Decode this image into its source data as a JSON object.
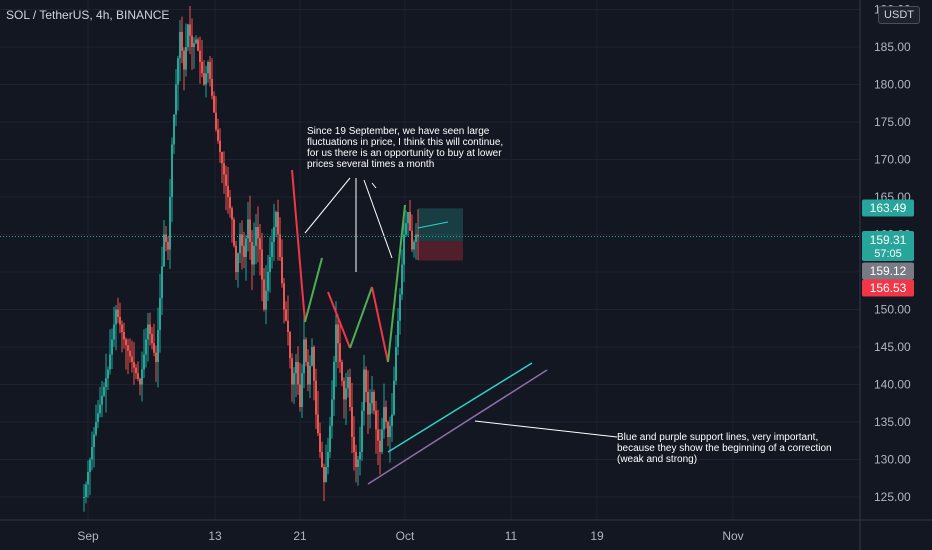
{
  "header": {
    "title": "SOL / TetherUS, 4h, BINANCE",
    "currency": "USDT"
  },
  "chart_data": {
    "type": "candlestick",
    "symbol": "SOL / TetherUS",
    "interval": "4h",
    "exchange": "BINANCE",
    "ylim": [
      120,
      190
    ],
    "ytick_labels": [
      "125.00",
      "130.00",
      "135.00",
      "140.00",
      "145.00",
      "150.00",
      "155.00",
      "160.00",
      "165.00",
      "170.00",
      "175.00",
      "180.00",
      "185.00",
      "190.00"
    ],
    "yticks": [
      125,
      130,
      135,
      140,
      145,
      150,
      155,
      160,
      165,
      170,
      175,
      180,
      185,
      190
    ],
    "xtick_labels": [
      "Sep",
      "13",
      "21",
      "Oct",
      "11",
      "19",
      "Nov"
    ],
    "candle_series": {
      "color_up": "#26a69a",
      "color_down": "#ef5350",
      "keypoints": [
        [
          0,
          125
        ],
        [
          3,
          135
        ],
        [
          6,
          142
        ],
        [
          8,
          150
        ],
        [
          10,
          146
        ],
        [
          12,
          143
        ],
        [
          14,
          140
        ],
        [
          16,
          148
        ],
        [
          18,
          143
        ],
        [
          20,
          160
        ],
        [
          21,
          158
        ],
        [
          22,
          172
        ],
        [
          23,
          180
        ],
        [
          24,
          187
        ],
        [
          25,
          182
        ],
        [
          26,
          188
        ],
        [
          27,
          185
        ],
        [
          28,
          186
        ],
        [
          30,
          180
        ],
        [
          31,
          183
        ],
        [
          33,
          174
        ],
        [
          35,
          168
        ],
        [
          37,
          162
        ],
        [
          38,
          155
        ],
        [
          39,
          160
        ],
        [
          40,
          157
        ],
        [
          41,
          162
        ],
        [
          42,
          156
        ],
        [
          43,
          161
        ],
        [
          44,
          158
        ],
        [
          45,
          150
        ],
        [
          46,
          155
        ],
        [
          48,
          163
        ],
        [
          49,
          157
        ],
        [
          50,
          150
        ],
        [
          51,
          147
        ],
        [
          52,
          140
        ],
        [
          53,
          143
        ],
        [
          54,
          137
        ],
        [
          55,
          146
        ],
        [
          56,
          140
        ],
        [
          57,
          145
        ],
        [
          58,
          136
        ],
        [
          59,
          131
        ],
        [
          60,
          127
        ],
        [
          61,
          131
        ],
        [
          62,
          138
        ],
        [
          63,
          148
        ],
        [
          64,
          143
        ],
        [
          65,
          138
        ],
        [
          66,
          141
        ],
        [
          67,
          133
        ],
        [
          68,
          129
        ],
        [
          69,
          131
        ],
        [
          70,
          142
        ],
        [
          71,
          136
        ],
        [
          72,
          139
        ],
        [
          73,
          134
        ],
        [
          74,
          131
        ],
        [
          75,
          137
        ],
        [
          76,
          133
        ],
        [
          77,
          136
        ],
        [
          78,
          145
        ],
        [
          79,
          152
        ],
        [
          80,
          160
        ],
        [
          81,
          163
        ],
        [
          82,
          158
        ],
        [
          83,
          160
        ],
        [
          84,
          159.31
        ]
      ]
    },
    "price_labels": [
      {
        "label": "163.49",
        "value": 163.49,
        "color": "#26a69a"
      },
      {
        "label": "159.31",
        "value": 159.31,
        "sub": "57:05",
        "color": "#26a69a"
      },
      {
        "label": "159.12",
        "value": 159.12,
        "color": "#787b86"
      },
      {
        "label": "156.53",
        "value": 156.53,
        "color": "#f23645"
      }
    ],
    "position_tool": {
      "entry": 159.12,
      "target": 163.49,
      "stop": 156.53
    },
    "annotations": [
      {
        "id": "fluctuations",
        "text": "Since 19 September, we have seen large fluctuations in price, I think this will continue, for us there is an opportunity to buy at lower prices several times a month"
      },
      {
        "id": "support",
        "text": "Blue and purple support lines, very important, because they show the beginning of a correction (weak and strong)"
      }
    ],
    "support_lines": [
      {
        "name": "blue support",
        "color": "#2ed3c6",
        "from": 130.5,
        "to": 139.5
      },
      {
        "name": "purple support",
        "color": "#8c6fa8",
        "from": 126.5,
        "to": 138.5
      }
    ]
  }
}
